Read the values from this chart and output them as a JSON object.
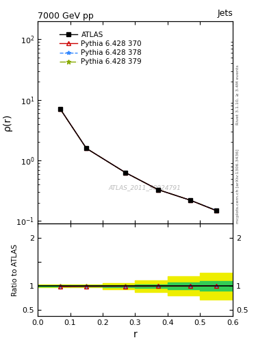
{
  "title": "7000 GeV pp",
  "title_right": "Jets",
  "ylabel_main": "ρ(r)",
  "ylabel_ratio": "Ratio to ATLAS",
  "xlabel": "r",
  "watermark": "ATLAS_2011_S8924791",
  "right_label": "mcplots.cern.ch [arXiv:1306.3436]",
  "right_label2": "Rivet 3.1.10, ≥ 3.4M events",
  "x_data": [
    0.07,
    0.15,
    0.27,
    0.37,
    0.47,
    0.55
  ],
  "atlas_y": [
    7.0,
    1.58,
    0.63,
    0.33,
    0.22,
    0.148
  ],
  "pythia370_y": [
    7.0,
    1.58,
    0.63,
    0.33,
    0.22,
    0.148
  ],
  "pythia378_y": [
    7.0,
    1.58,
    0.63,
    0.33,
    0.22,
    0.15
  ],
  "pythia379_y": [
    7.0,
    1.58,
    0.63,
    0.33,
    0.22,
    0.15
  ],
  "ratio370": [
    0.99,
    0.995,
    0.998,
    1.0,
    1.0,
    1.005
  ],
  "ratio378": [
    0.99,
    0.998,
    0.998,
    1.0,
    1.01,
    1.01
  ],
  "ratio379": [
    1.0,
    1.0,
    1.0,
    1.0,
    1.005,
    1.005
  ],
  "band_edges": [
    0.0,
    0.1,
    0.2,
    0.3,
    0.4,
    0.5,
    0.6
  ],
  "green_upper": [
    1.015,
    1.015,
    1.02,
    1.04,
    1.07,
    1.1
  ],
  "green_lower": [
    0.985,
    0.985,
    0.98,
    0.96,
    0.93,
    0.9
  ],
  "yellow_upper": [
    1.03,
    1.03,
    1.06,
    1.12,
    1.2,
    1.28
  ],
  "yellow_lower": [
    0.97,
    0.97,
    0.94,
    0.88,
    0.8,
    0.72
  ],
  "color_atlas": "#000000",
  "color_370": "#cc0000",
  "color_378": "#3388ff",
  "color_379": "#88aa00",
  "color_green": "#33cc55",
  "color_yellow": "#eeee00",
  "xlim": [
    0.0,
    0.6
  ],
  "ylim_main": [
    0.09,
    200
  ],
  "ylim_ratio": [
    0.38,
    2.3
  ]
}
